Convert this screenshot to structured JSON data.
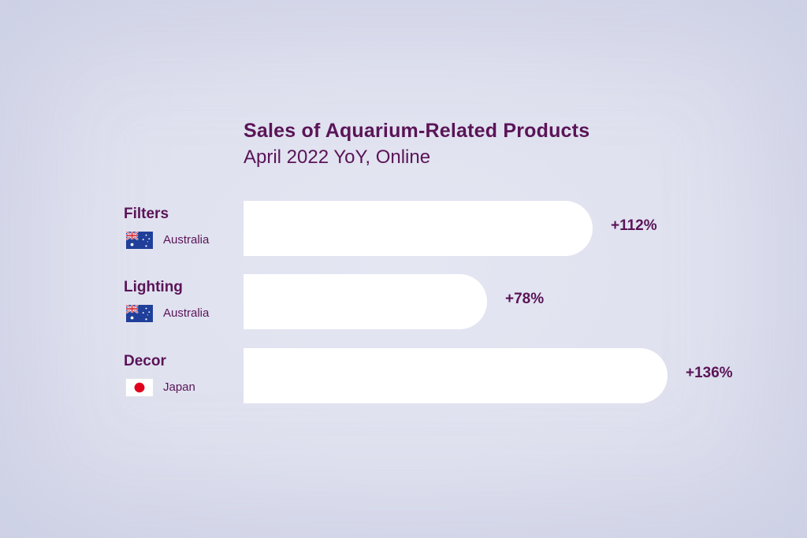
{
  "header": {
    "title": "Sales of Aquarium-Related Products",
    "subtitle": "April 2022 YoY, Online"
  },
  "colors": {
    "text": "#5a1457",
    "bar": "#ffffff",
    "background": "#dfe1ef"
  },
  "rows": [
    {
      "category": "Filters",
      "country": "Australia",
      "flag_icon": "australia-flag-icon",
      "value_label": "+112%"
    },
    {
      "category": "Lighting",
      "country": "Australia",
      "flag_icon": "australia-flag-icon",
      "value_label": "+78%"
    },
    {
      "category": "Decor",
      "country": "Japan",
      "flag_icon": "japan-flag-icon",
      "value_label": "+136%"
    }
  ],
  "chart_data": {
    "type": "bar",
    "orientation": "horizontal",
    "title": "Sales of Aquarium-Related Products",
    "subtitle": "April 2022 YoY, Online",
    "categories": [
      "Filters",
      "Lighting",
      "Decor"
    ],
    "sublabels": [
      "Australia",
      "Australia",
      "Japan"
    ],
    "values": [
      112,
      78,
      136
    ],
    "data_labels": [
      "+112%",
      "+78%",
      "+136%"
    ],
    "unit": "%",
    "grid": false,
    "legend": "none"
  }
}
